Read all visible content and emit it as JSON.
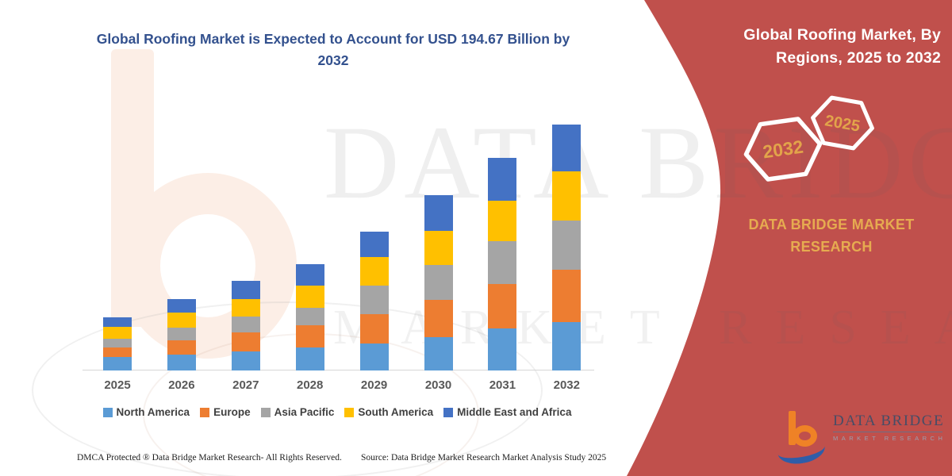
{
  "title": "Global Roofing Market is Expected to Account for USD 194.67 Billion by 2032",
  "panel": {
    "header": "Global Roofing Market, By Regions, 2025 to 2032",
    "hex_left_label": "2032",
    "hex_right_label": "2025",
    "brand": "DATA BRIDGE MARKET RESEARCH",
    "red_color": "#c0504c",
    "gold_color": "#e2a74c"
  },
  "logo": {
    "name": "DATA BRIDGE",
    "subtitle": "MARKET RESEARCH"
  },
  "watermark": {
    "line1": "DATA BRIDGE",
    "line2": "MARKET RESEARCH"
  },
  "footer": {
    "left": "DMCA Protected ® Data Bridge Market Research-  All Rights Reserved.",
    "source": "Source: Data Bridge Market Research  Market Analysis Study 2025"
  },
  "chart_data": {
    "type": "bar",
    "stacked": true,
    "title": "Global Roofing Market is Expected to Account for USD 194.67 Billion by 2032",
    "unit": "USD Billion",
    "xlabel": "",
    "ylabel": "",
    "ylim": [
      0,
      200
    ],
    "grid": false,
    "legend_position": "bottom",
    "categories": [
      "2025",
      "2026",
      "2027",
      "2028",
      "2029",
      "2030",
      "2031",
      "2032"
    ],
    "series": [
      {
        "name": "North America",
        "color": "#5b9bd5",
        "values": [
          10.5,
          12.5,
          15.2,
          18.4,
          21.5,
          26.2,
          33.0,
          38.5
        ]
      },
      {
        "name": "Europe",
        "color": "#ed7d31",
        "values": [
          7.7,
          11.5,
          14.6,
          17.1,
          23.0,
          29.5,
          35.1,
          41.2
        ]
      },
      {
        "name": "Asia Pacific",
        "color": "#a5a5a5",
        "values": [
          6.9,
          9.8,
          13.0,
          14.2,
          22.6,
          27.6,
          33.9,
          39.1
        ]
      },
      {
        "name": "South America",
        "color": "#ffc000",
        "values": [
          9.4,
          11.7,
          13.6,
          17.6,
          22.4,
          27.2,
          32.0,
          38.7
        ]
      },
      {
        "name": "Middle East and Africa",
        "color": "#4472c4",
        "values": [
          7.8,
          10.9,
          14.6,
          16.7,
          20.5,
          28.4,
          34.3,
          37.2
        ]
      }
    ],
    "totals": [
      42.3,
      56.4,
      71.0,
      84.0,
      110.0,
      138.9,
      168.3,
      194.7
    ]
  }
}
